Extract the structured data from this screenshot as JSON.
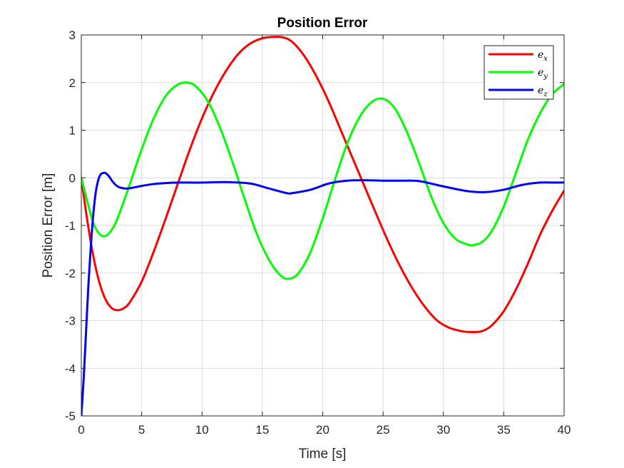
{
  "chart_data": {
    "type": "line",
    "title": "Position Error",
    "xlabel": "Time [s]",
    "ylabel": "Position Error [m]",
    "xlim": [
      0,
      40
    ],
    "ylim": [
      -5,
      3
    ],
    "xticks": [
      0,
      5,
      10,
      15,
      20,
      25,
      30,
      35,
      40
    ],
    "yticks": [
      -5,
      -4,
      -3,
      -2,
      -1,
      0,
      1,
      2,
      3
    ],
    "grid": true,
    "legend_position": "top-right",
    "series": [
      {
        "name": "e_x",
        "label_base": "e",
        "label_sub": "x",
        "color": "#ff0000",
        "x": [
          0,
          0.5,
          1,
          1.5,
          2,
          2.5,
          3,
          3.5,
          4,
          5,
          6,
          7,
          8,
          9,
          10,
          11,
          12,
          13,
          14,
          15,
          16,
          16.7,
          17.5,
          18.5,
          19.5,
          20.5,
          21.5,
          22.5,
          23.5,
          24.5,
          25.5,
          26.5,
          27.5,
          28.5,
          29.5,
          30.5,
          31.5,
          32.3,
          33.2,
          34,
          35,
          36,
          37,
          38,
          39,
          40
        ],
        "values": [
          0,
          -0.9,
          -1.65,
          -2.2,
          -2.55,
          -2.73,
          -2.78,
          -2.74,
          -2.62,
          -2.18,
          -1.55,
          -0.85,
          -0.12,
          0.6,
          1.25,
          1.8,
          2.25,
          2.6,
          2.82,
          2.93,
          2.96,
          2.95,
          2.85,
          2.55,
          2.12,
          1.6,
          1.0,
          0.4,
          -0.2,
          -0.8,
          -1.38,
          -1.9,
          -2.35,
          -2.72,
          -3.0,
          -3.15,
          -3.22,
          -3.24,
          -3.22,
          -3.1,
          -2.8,
          -2.35,
          -1.8,
          -1.2,
          -0.7,
          -0.27
        ]
      },
      {
        "name": "e_y",
        "label_base": "e",
        "label_sub": "y",
        "color": "#00ff00",
        "x": [
          0,
          0.5,
          1,
          1.5,
          2,
          2.5,
          3,
          4,
          5,
          6,
          7,
          8,
          8.8,
          9.5,
          10.5,
          11.5,
          12.5,
          13.5,
          14.5,
          15.5,
          16.5,
          17.2,
          18,
          19,
          20,
          21,
          22,
          23,
          24,
          25,
          26,
          27,
          28,
          29,
          30,
          31,
          32,
          32.5,
          33.2,
          34,
          35,
          36,
          37,
          38,
          39,
          40
        ],
        "values": [
          0,
          -0.5,
          -0.95,
          -1.18,
          -1.22,
          -1.1,
          -0.85,
          -0.15,
          0.6,
          1.25,
          1.72,
          1.96,
          2.0,
          1.92,
          1.6,
          1.05,
          0.35,
          -0.42,
          -1.15,
          -1.7,
          -2.05,
          -2.12,
          -2.0,
          -1.55,
          -0.85,
          -0.05,
          0.7,
          1.25,
          1.58,
          1.66,
          1.45,
          0.95,
          0.3,
          -0.4,
          -0.95,
          -1.28,
          -1.4,
          -1.41,
          -1.35,
          -1.12,
          -0.6,
          0.1,
          0.8,
          1.35,
          1.75,
          1.97
        ]
      },
      {
        "name": "e_z",
        "label_base": "e",
        "label_sub": "z",
        "color": "#0000ff",
        "x": [
          0,
          0.2,
          0.4,
          0.6,
          0.8,
          1,
          1.2,
          1.4,
          1.6,
          1.8,
          2,
          2.3,
          2.6,
          3,
          3.5,
          4,
          5,
          6,
          7,
          8,
          9,
          10,
          12,
          14,
          15.5,
          17,
          17.5,
          19,
          20.5,
          22,
          23.5,
          25,
          26.5,
          28,
          30,
          32,
          33.5,
          35,
          36.5,
          38,
          39,
          40
        ],
        "values": [
          -5,
          -4.2,
          -3.2,
          -2.2,
          -1.4,
          -0.75,
          -0.3,
          -0.05,
          0.07,
          0.1,
          0.1,
          0.03,
          -0.08,
          -0.18,
          -0.22,
          -0.22,
          -0.17,
          -0.13,
          -0.11,
          -0.1,
          -0.1,
          -0.1,
          -0.09,
          -0.12,
          -0.22,
          -0.32,
          -0.32,
          -0.25,
          -0.12,
          -0.06,
          -0.05,
          -0.06,
          -0.06,
          -0.07,
          -0.18,
          -0.28,
          -0.3,
          -0.25,
          -0.15,
          -0.1,
          -0.1,
          -0.1
        ]
      }
    ]
  }
}
